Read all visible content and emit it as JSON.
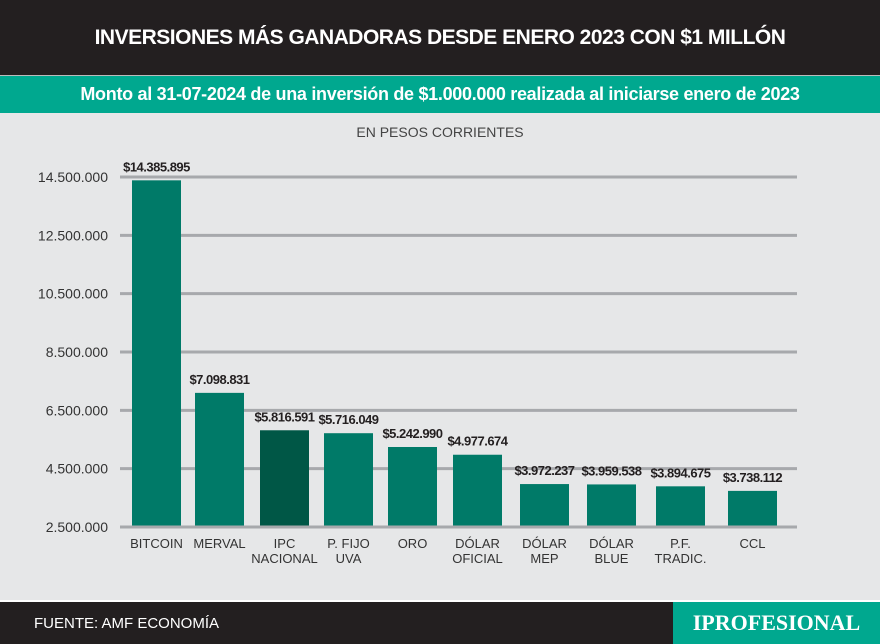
{
  "header": {
    "title": "INVERSIONES MÁS GANADORAS DESDE ENERO 2023 CON $1 MILLÓN",
    "subtitle": "Monto al 31-07-2024 de una inversión de $1.000.000 realizada al iniciarse enero de 2023"
  },
  "footer": {
    "source": "FUENTE: AMF ECONOMÍA",
    "logo": "IPROFESIONAL"
  },
  "colors": {
    "bar": "#007a68",
    "highlight": "#005746",
    "teal": "#00a88f",
    "dark": "#231f20"
  },
  "chart_data": {
    "type": "bar",
    "title": "INVERSIONES MÁS GANADORAS DESDE ENERO 2023 CON $1 MILLÓN",
    "subtitle": "EN PESOS CORRIENTES",
    "categories": [
      [
        "BITCOIN"
      ],
      [
        "MERVAL"
      ],
      [
        "IPC",
        "NACIONAL"
      ],
      [
        "P. FIJO",
        "UVA"
      ],
      [
        "ORO"
      ],
      [
        "DÓLAR",
        "OFICIAL"
      ],
      [
        "DÓLAR",
        "MEP"
      ],
      [
        "DÓLAR",
        "BLUE"
      ],
      [
        "P.F.",
        "TRADIC."
      ],
      [
        "CCL"
      ]
    ],
    "values": [
      14385895,
      7098831,
      5816591,
      5716049,
      5242990,
      4977674,
      3972237,
      3959538,
      3894675,
      3738112
    ],
    "labels": [
      "$14.385.895",
      "$7.098.831",
      "$5.816.591",
      "$5.716.049",
      "$5.242.990",
      "$4.977.674",
      "$3.972.237",
      "$3.959.538",
      "$3.894.675",
      "$3.738.112"
    ],
    "highlight_index": 2,
    "yticks": [
      2500000,
      4500000,
      6500000,
      8500000,
      10500000,
      12500000,
      14500000
    ],
    "ytick_labels": [
      "2.500.000",
      "4.500.000",
      "6.500.000",
      "8.500.000",
      "10.500.000",
      "12.500.000",
      "14.500.000"
    ],
    "ylim": [
      2500000,
      14500000
    ],
    "grid": true
  }
}
